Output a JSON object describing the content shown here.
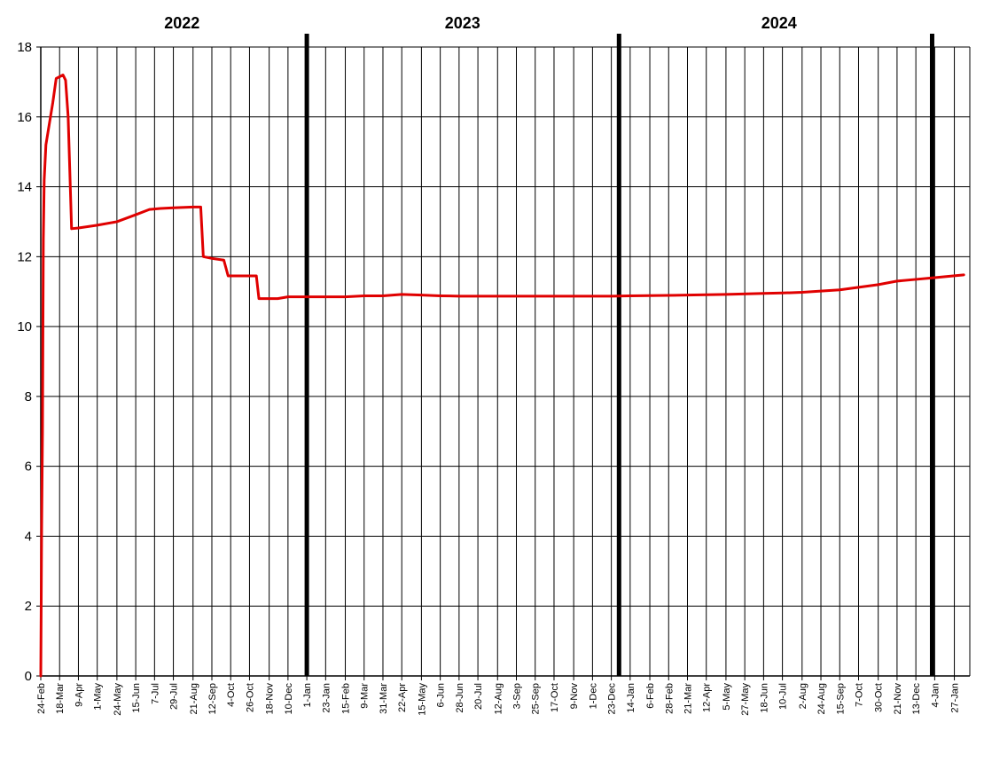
{
  "chart_data": {
    "type": "line",
    "title": "",
    "xlabel": "",
    "ylabel": "",
    "ylim": [
      0,
      18
    ],
    "yticks": [
      0,
      2,
      4,
      6,
      8,
      10,
      12,
      14,
      16,
      18
    ],
    "grid": true,
    "legend": "none",
    "year_labels": [
      {
        "label": "2022",
        "center_date": "2022-08-08"
      },
      {
        "label": "2023",
        "center_date": "2023-07-02"
      },
      {
        "label": "2024",
        "center_date": "2024-07-06"
      }
    ],
    "year_boundaries": [
      "2023-01-01",
      "2024-01-01",
      "2025-01-01"
    ],
    "x_tick_dates": [
      "2022-02-24",
      "2022-03-18",
      "2022-04-09",
      "2022-05-01",
      "2022-05-24",
      "2022-06-15",
      "2022-07-07",
      "2022-07-29",
      "2022-08-21",
      "2022-09-12",
      "2022-10-04",
      "2022-10-26",
      "2022-11-18",
      "2022-12-10",
      "2023-01-01",
      "2023-01-23",
      "2023-02-15",
      "2023-03-09",
      "2023-03-31",
      "2023-04-22",
      "2023-05-15",
      "2023-06-06",
      "2023-06-28",
      "2023-07-20",
      "2023-08-12",
      "2023-09-03",
      "2023-09-25",
      "2023-10-17",
      "2023-11-09",
      "2023-12-01",
      "2023-12-23",
      "2024-01-14",
      "2024-02-06",
      "2024-02-28",
      "2024-03-21",
      "2024-04-12",
      "2024-05-05",
      "2024-05-27",
      "2024-06-18",
      "2024-07-10",
      "2024-08-02",
      "2024-08-24",
      "2024-09-15",
      "2024-10-07",
      "2024-10-30",
      "2024-11-21",
      "2024-12-13",
      "2025-01-04",
      "2025-01-27"
    ],
    "x_tick_labels": [
      "24-Feb",
      "18-Mar",
      "9-Apr",
      "1-May",
      "24-May",
      "15-Jun",
      "7-Jul",
      "29-Jul",
      "21-Aug",
      "12-Sep",
      "4-Oct",
      "26-Oct",
      "18-Nov",
      "10-Dec",
      "1-Jan",
      "23-Jan",
      "15-Feb",
      "9-Mar",
      "31-Mar",
      "22-Apr",
      "15-May",
      "6-Jun",
      "28-Jun",
      "20-Jul",
      "12-Aug",
      "3-Sep",
      "25-Sep",
      "17-Oct",
      "9-Nov",
      "1-Dec",
      "23-Dec",
      "14-Jan",
      "6-Feb",
      "28-Feb",
      "21-Mar",
      "12-Apr",
      "5-May",
      "27-May",
      "18-Jun",
      "10-Jul",
      "2-Aug",
      "24-Aug",
      "15-Sep",
      "7-Oct",
      "30-Oct",
      "21-Nov",
      "13-Dec",
      "4-Jan",
      "27-Jan"
    ],
    "series": [
      {
        "color": "#e00000",
        "points": [
          [
            "2022-02-24",
            0
          ],
          [
            "2022-02-25",
            4.2
          ],
          [
            "2022-02-26",
            7.0
          ],
          [
            "2022-02-27",
            12.5
          ],
          [
            "2022-02-28",
            14.2
          ],
          [
            "2022-03-02",
            15.2
          ],
          [
            "2022-03-06",
            15.8
          ],
          [
            "2022-03-10",
            16.4
          ],
          [
            "2022-03-14",
            17.1
          ],
          [
            "2022-03-18",
            17.15
          ],
          [
            "2022-03-22",
            17.2
          ],
          [
            "2022-03-25",
            17.05
          ],
          [
            "2022-03-28",
            16.0
          ],
          [
            "2022-04-01",
            12.8
          ],
          [
            "2022-04-09",
            12.82
          ],
          [
            "2022-05-01",
            12.9
          ],
          [
            "2022-05-24",
            13.0
          ],
          [
            "2022-06-15",
            13.2
          ],
          [
            "2022-07-01",
            13.35
          ],
          [
            "2022-07-14",
            13.38
          ],
          [
            "2022-07-29",
            13.4
          ],
          [
            "2022-08-21",
            13.42
          ],
          [
            "2022-08-30",
            13.42
          ],
          [
            "2022-09-02",
            12.0
          ],
          [
            "2022-09-12",
            11.95
          ],
          [
            "2022-09-26",
            11.9
          ],
          [
            "2022-10-01",
            11.45
          ],
          [
            "2022-10-26",
            11.45
          ],
          [
            "2022-11-03",
            11.45
          ],
          [
            "2022-11-06",
            10.8
          ],
          [
            "2022-11-18",
            10.8
          ],
          [
            "2022-11-28",
            10.8
          ],
          [
            "2022-12-10",
            10.85
          ],
          [
            "2023-01-01",
            10.85
          ],
          [
            "2023-02-15",
            10.85
          ],
          [
            "2023-03-09",
            10.88
          ],
          [
            "2023-03-31",
            10.88
          ],
          [
            "2023-04-22",
            10.92
          ],
          [
            "2023-05-15",
            10.9
          ],
          [
            "2023-06-06",
            10.88
          ],
          [
            "2023-06-28",
            10.87
          ],
          [
            "2023-09-03",
            10.87
          ],
          [
            "2023-12-23",
            10.87
          ],
          [
            "2024-01-14",
            10.88
          ],
          [
            "2024-03-21",
            10.9
          ],
          [
            "2024-05-05",
            10.92
          ],
          [
            "2024-06-18",
            10.95
          ],
          [
            "2024-07-10",
            10.96
          ],
          [
            "2024-08-02",
            10.98
          ],
          [
            "2024-09-15",
            11.05
          ],
          [
            "2024-10-30",
            11.2
          ],
          [
            "2024-11-21",
            11.3
          ],
          [
            "2024-12-13",
            11.35
          ],
          [
            "2025-01-04",
            11.4
          ],
          [
            "2025-02-07",
            11.48
          ]
        ]
      }
    ]
  }
}
